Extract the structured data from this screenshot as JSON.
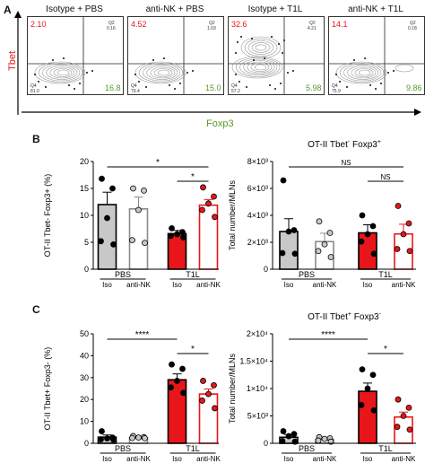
{
  "panel_labels": {
    "a": "A",
    "b": "B",
    "c": "C"
  },
  "flow": {
    "ylabel": "Tbet",
    "xlabel": "Foxp3",
    "plots": [
      {
        "title": "Isotype + PBS",
        "q1": "2.10",
        "q2": "0.16",
        "q3": "16.8",
        "q4": "81.0"
      },
      {
        "title": "anti-NK + PBS",
        "q1": "4.52",
        "q2": "1.03",
        "q3": "15.0",
        "q4": "79.4"
      },
      {
        "title": "Isotype + T1L",
        "q1": "32.6",
        "q2": "4.21",
        "q3": "5.98",
        "q4": "57.2"
      },
      {
        "title": "anti-NK + T1L",
        "q1": "14.1",
        "q2": "0.18",
        "q3": "9.86",
        "q4": "75.9"
      }
    ],
    "q2_label": "Q2",
    "q4_label": "Q4"
  },
  "colors": {
    "red": "#e8161b",
    "grey": "#c8c8c8",
    "dark_grey": "#8a8a8a",
    "green": "#5a9a2a",
    "black": "#000000"
  },
  "group_labels": {
    "iso": "Iso",
    "antiNK": "anti-NK",
    "pbs": "PBS",
    "t1l": "T1L"
  },
  "chart_data": [
    {
      "type": "bar",
      "panel": "B-left",
      "title": "",
      "ylabel": "OT-II Tbet- Foxp3+ (%)",
      "ylim": [
        0,
        20
      ],
      "yticks": [
        "0",
        "5",
        "10",
        "15",
        "20"
      ],
      "categories": [
        "Iso PBS",
        "anti-NK PBS",
        "Iso T1L",
        "anti-NK T1L"
      ],
      "values": [
        12.0,
        11.2,
        6.6,
        11.9
      ],
      "sem": [
        2.3,
        2.2,
        0.6,
        1.0
      ],
      "points": [
        [
          16.8,
          15.0,
          9.5,
          5.2,
          4.6
        ],
        [
          15.0,
          14.6,
          11.0,
          5.4,
          4.9
        ],
        [
          7.6,
          6.9,
          6.5,
          6.2,
          5.9
        ],
        [
          15.2,
          13.5,
          12.2,
          11.0,
          9.7
        ]
      ],
      "significance": [
        {
          "label": "*",
          "from": 0,
          "to": 3
        },
        {
          "label": "*",
          "from": 2,
          "to": 3
        }
      ]
    },
    {
      "type": "bar",
      "panel": "B-right",
      "title": "OT-II Tbet- Foxp3+",
      "title_main": "OT-II Tbet",
      "title_sup1": "-",
      "title_mid": " Foxp3",
      "title_sup2": "+",
      "ylabel": "Total number/MLNs",
      "ylim": [
        0,
        8000
      ],
      "yticks": [
        "0",
        "2×10³",
        "4×10³",
        "6×10³",
        "8×10³"
      ],
      "categories": [
        "Iso PBS",
        "anti-NK PBS",
        "Iso T1L",
        "anti-NK T1L"
      ],
      "values": [
        2800,
        2050,
        2700,
        2620
      ],
      "sem": [
        950,
        620,
        600,
        720
      ],
      "points": [
        [
          6600,
          2900,
          2800,
          1200,
          1150
        ],
        [
          3550,
          2700,
          1850,
          1350,
          900
        ],
        [
          4000,
          3200,
          2600,
          2050,
          1150
        ],
        [
          4700,
          3400,
          2600,
          1500,
          1350
        ]
      ],
      "significance": [
        {
          "label": "NS",
          "from": 0,
          "to": 3
        },
        {
          "label": "NS",
          "from": 2,
          "to": 3
        }
      ]
    },
    {
      "type": "bar",
      "panel": "C-left",
      "title": "",
      "ylabel": "OT-II Tbet+ Foxp3- (%)",
      "ylim": [
        0,
        50
      ],
      "yticks": [
        "0",
        "10",
        "20",
        "30",
        "40",
        "50"
      ],
      "categories": [
        "Iso PBS",
        "anti-NK PBS",
        "Iso T1L",
        "anti-NK T1L"
      ],
      "values": [
        2.8,
        2.5,
        29.0,
        22.5
      ],
      "sem": [
        1.0,
        0.3,
        2.7,
        2.3
      ],
      "points": [
        [
          5.5,
          2.6,
          2.2,
          1.8,
          1.6
        ],
        [
          3.3,
          2.8,
          2.6,
          2.4,
          2.3
        ],
        [
          36.0,
          34.0,
          28.5,
          25.5,
          23.0
        ],
        [
          28.5,
          26.5,
          22.5,
          19.5,
          16.0
        ]
      ],
      "significance": [
        {
          "label": "****",
          "from": 0,
          "to": 2
        },
        {
          "label": "*",
          "from": 2,
          "to": 3
        }
      ]
    },
    {
      "type": "bar",
      "panel": "C-right",
      "title": "OT-II Tbet+ Foxp3-",
      "title_main": "OT-II Tbet",
      "title_sup1": "+",
      "title_mid": " Foxp3",
      "title_sup2": "-",
      "ylabel": "Total number/MLNs",
      "ylim": [
        0,
        20000
      ],
      "yticks": [
        "0",
        "5×10³",
        "1×10⁴",
        "1.5×10⁴",
        "2×10⁴"
      ],
      "categories": [
        "Iso PBS",
        "anti-NK PBS",
        "Iso T1L",
        "anti-NK T1L"
      ],
      "values": [
        1100,
        700,
        9500,
        4800
      ],
      "sem": [
        500,
        150,
        1500,
        900
      ],
      "points": [
        [
          2200,
          1700,
          1300,
          400,
          300
        ],
        [
          1100,
          900,
          800,
          500,
          300
        ],
        [
          13500,
          12500,
          10000,
          7000,
          6000
        ],
        [
          8000,
          6500,
          5000,
          3000,
          2500
        ]
      ],
      "significance": [
        {
          "label": "****",
          "from": 0,
          "to": 2
        },
        {
          "label": "*",
          "from": 2,
          "to": 3
        }
      ]
    }
  ]
}
